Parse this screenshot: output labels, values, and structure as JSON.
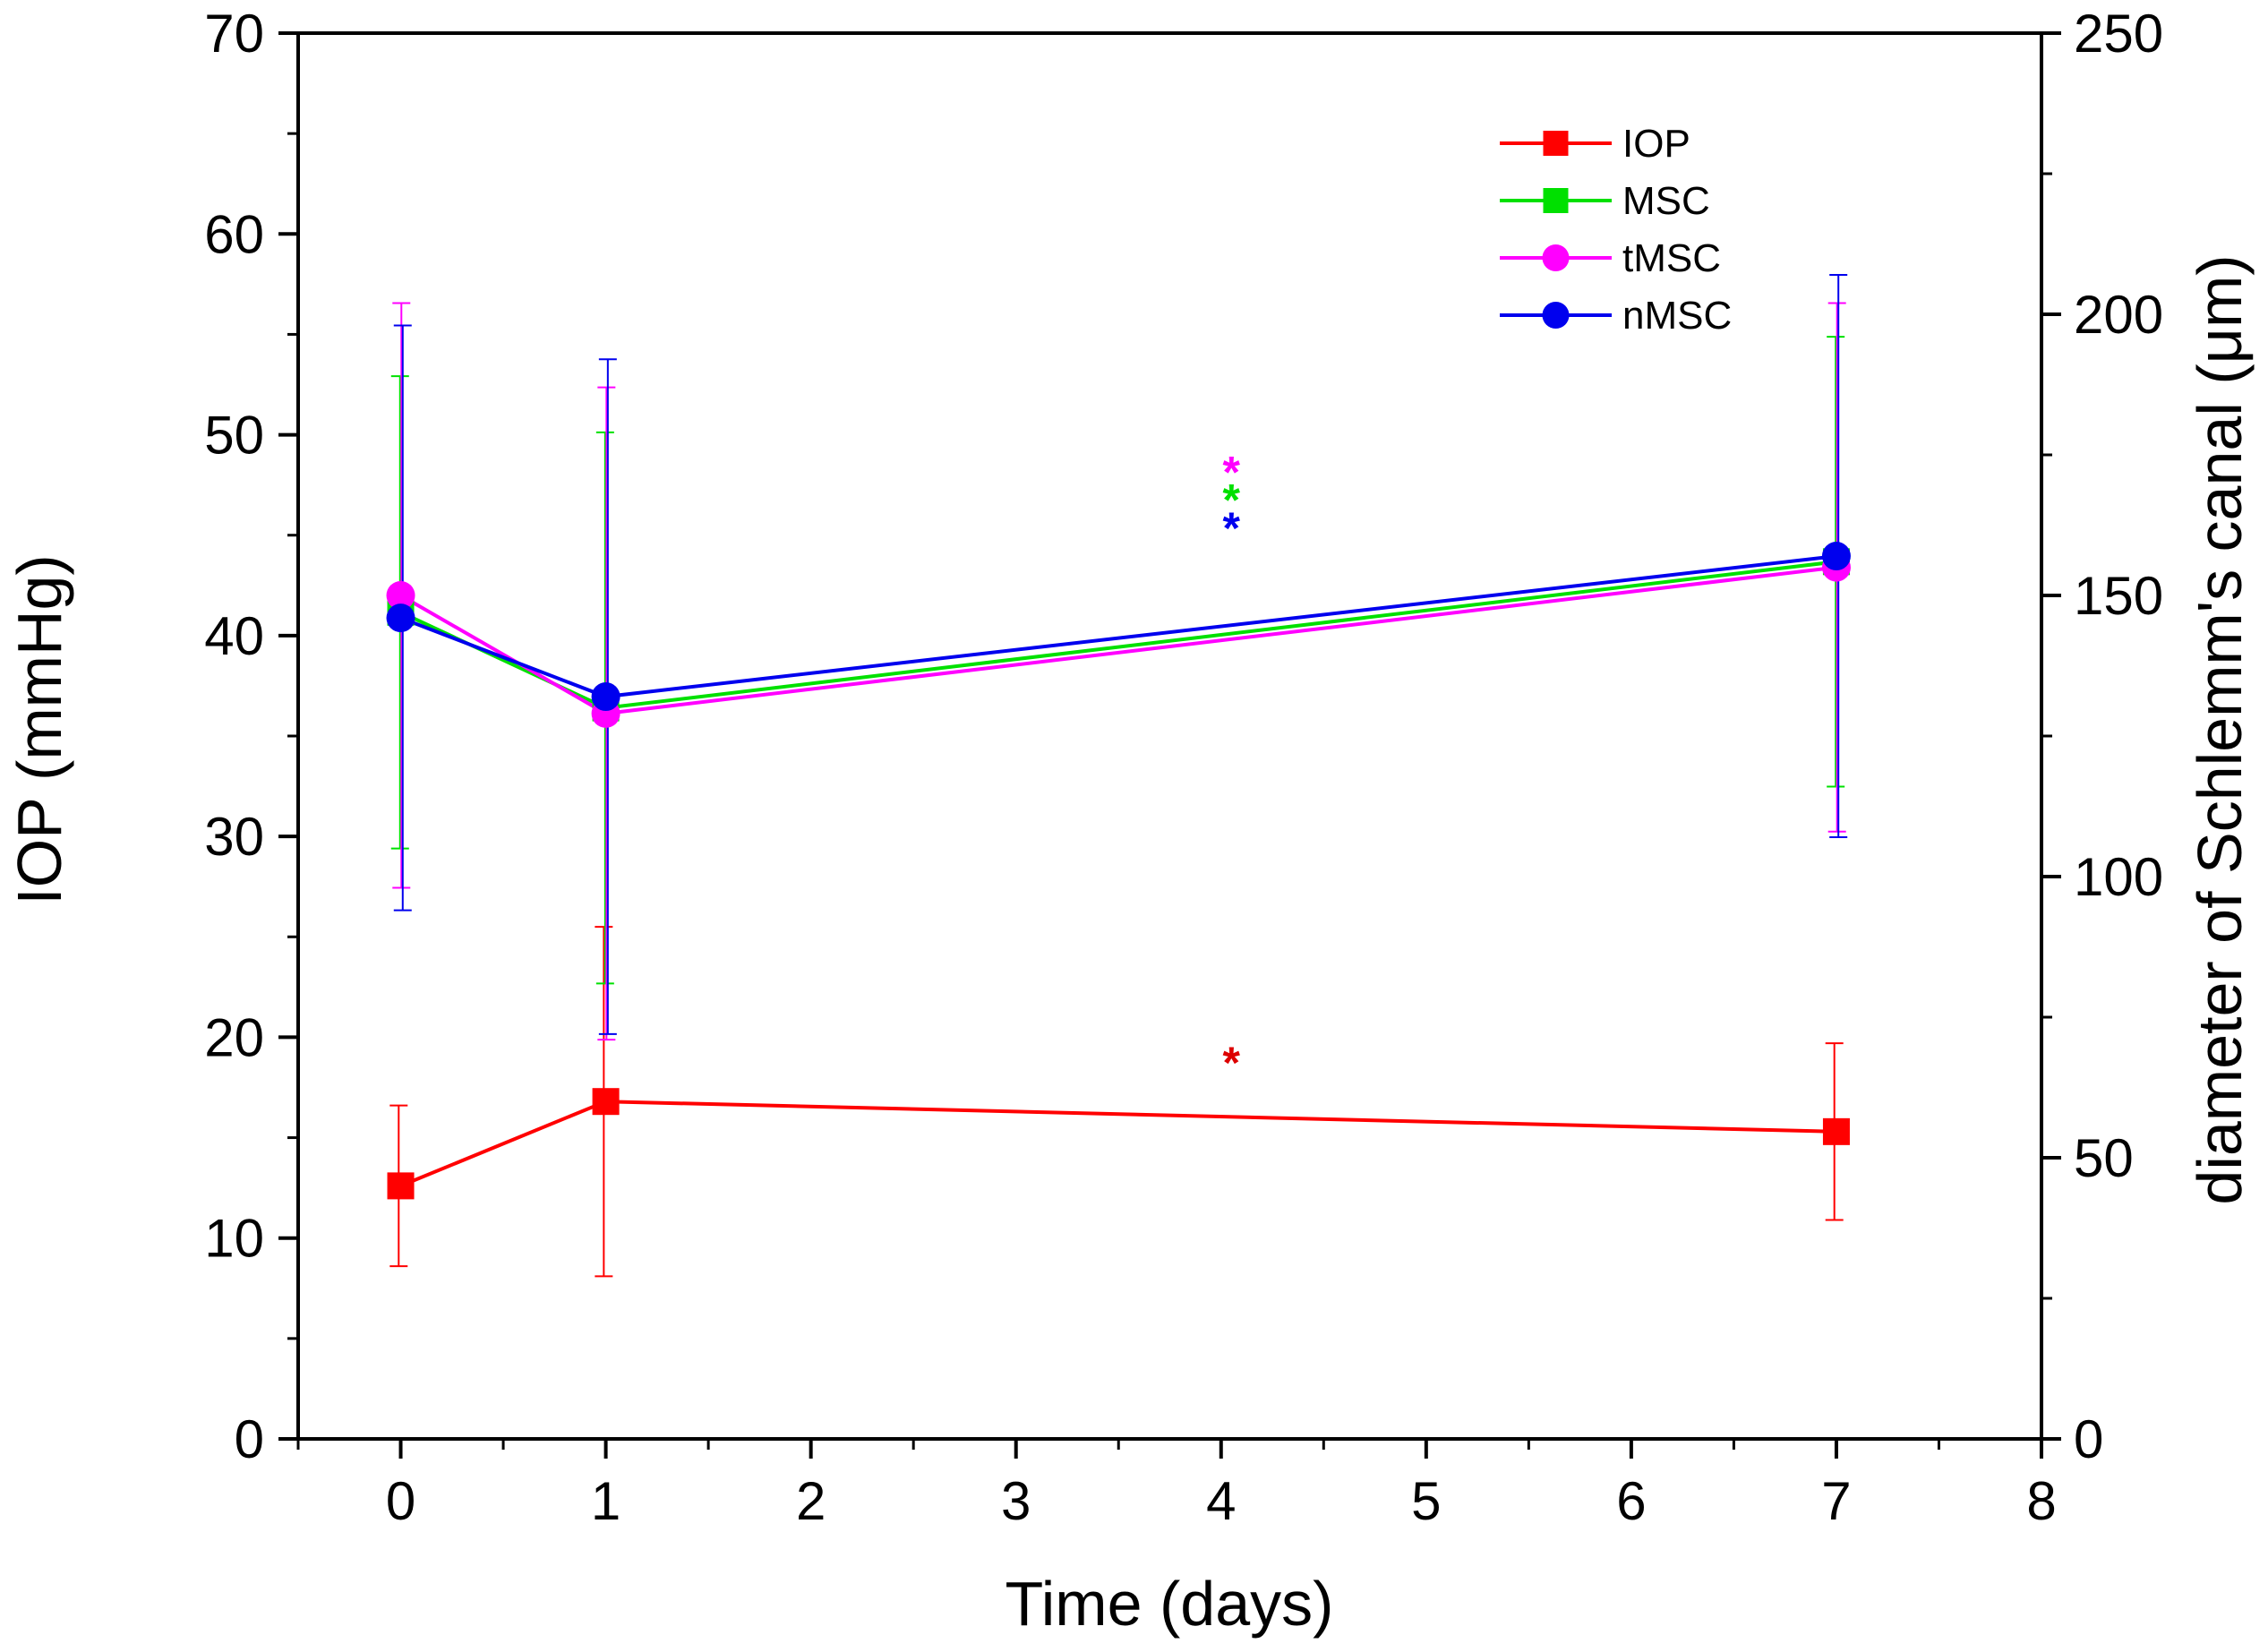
{
  "chart_data": {
    "type": "line",
    "xlabel": "Time (days)",
    "ylabel_left": "IOP (mmHg)",
    "ylabel_right": "diameter of Schlemm's canal (μm)",
    "xlim": [
      -0.5,
      8
    ],
    "ylim_left": [
      0,
      70
    ],
    "ylim_right": [
      0,
      250
    ],
    "x_ticks": [
      0,
      1,
      2,
      3,
      4,
      5,
      6,
      7,
      8
    ],
    "y_left_ticks": [
      0,
      10,
      20,
      30,
      40,
      50,
      60,
      70
    ],
    "y_right_ticks": [
      0,
      50,
      100,
      150,
      200,
      250
    ],
    "legend_position": "top-right",
    "series": [
      {
        "name": "IOP",
        "axis": "left",
        "color": "#ff0000",
        "marker": "square",
        "x": [
          0,
          1,
          7
        ],
        "values": [
          12.6,
          16.8,
          15.3
        ],
        "err": [
          4.0,
          8.7,
          4.4
        ]
      },
      {
        "name": "MSC",
        "axis": "right",
        "color": "#00e000",
        "marker": "square",
        "x": [
          0,
          1,
          7
        ],
        "values": [
          147,
          130,
          156
        ],
        "err": [
          42,
          49,
          40
        ]
      },
      {
        "name": "tMSC",
        "axis": "right",
        "color": "#ff00ff",
        "marker": "circle",
        "x": [
          0,
          1,
          7
        ],
        "values": [
          150,
          129,
          155
        ],
        "err": [
          52,
          58,
          47
        ]
      },
      {
        "name": "nMSC",
        "axis": "right",
        "color": "#0000ee",
        "marker": "circle",
        "x": [
          0,
          1,
          7
        ],
        "values": [
          146,
          132,
          157
        ],
        "err": [
          52,
          60,
          50
        ]
      }
    ],
    "annotations": [
      {
        "text": "*",
        "x": 4.05,
        "axis": "right",
        "value": 174,
        "color": "#ff00ff"
      },
      {
        "text": "*",
        "x": 4.05,
        "axis": "right",
        "value": 169,
        "color": "#00e000"
      },
      {
        "text": "*",
        "x": 4.05,
        "axis": "right",
        "value": 164,
        "color": "#0000ee"
      },
      {
        "text": "*",
        "x": 4.05,
        "axis": "left",
        "value": 19.3,
        "color": "#dd0000"
      }
    ]
  }
}
